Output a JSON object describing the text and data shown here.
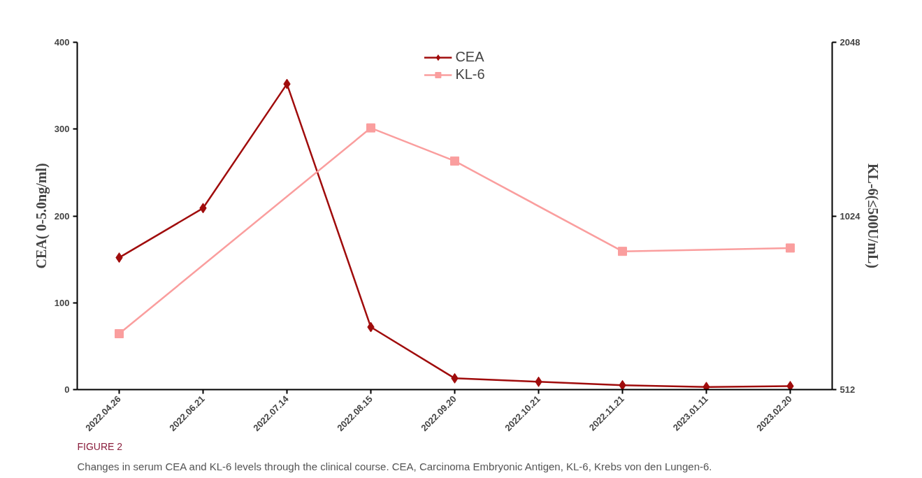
{
  "chart_data": {
    "type": "line",
    "categories": [
      "2022.04.26",
      "2022.06.21",
      "2022.07.14",
      "2022.08.15",
      "2022.09.20",
      "2022.10.21",
      "2022.11.21",
      "2023.01.11",
      "2023.02.20"
    ],
    "series": [
      {
        "name": "CEA",
        "color": "#a00c0c",
        "marker": "diamond",
        "values": [
          152,
          209,
          352,
          72,
          13,
          9,
          5,
          3,
          4
        ]
      },
      {
        "name": "KL-6",
        "color": "#fa9e9e",
        "marker": "square",
        "axis": "y2",
        "values": [
          640,
          null,
          null,
          1455,
          1275,
          null,
          889,
          null,
          901
        ]
      }
    ],
    "ylabel": "CEA( 0-5.0ng/ml)",
    "y2label": "KL-6(≤500U/mL)",
    "ylim": [
      0,
      400
    ],
    "yticks": [
      0,
      100,
      200,
      300,
      400
    ],
    "y2lim": [
      512,
      2048
    ],
    "y2ticks": [
      512,
      1024,
      2048
    ],
    "log": "y2",
    "grid": false,
    "legend": "top",
    "annotations": [
      "FIGURE 2",
      "Changes in serum CEA and KL-6 levels through the clinical course. CEA, Carcinoma Embryonic Antigen, KL-6, Krebs von den Lungen-6."
    ]
  }
}
